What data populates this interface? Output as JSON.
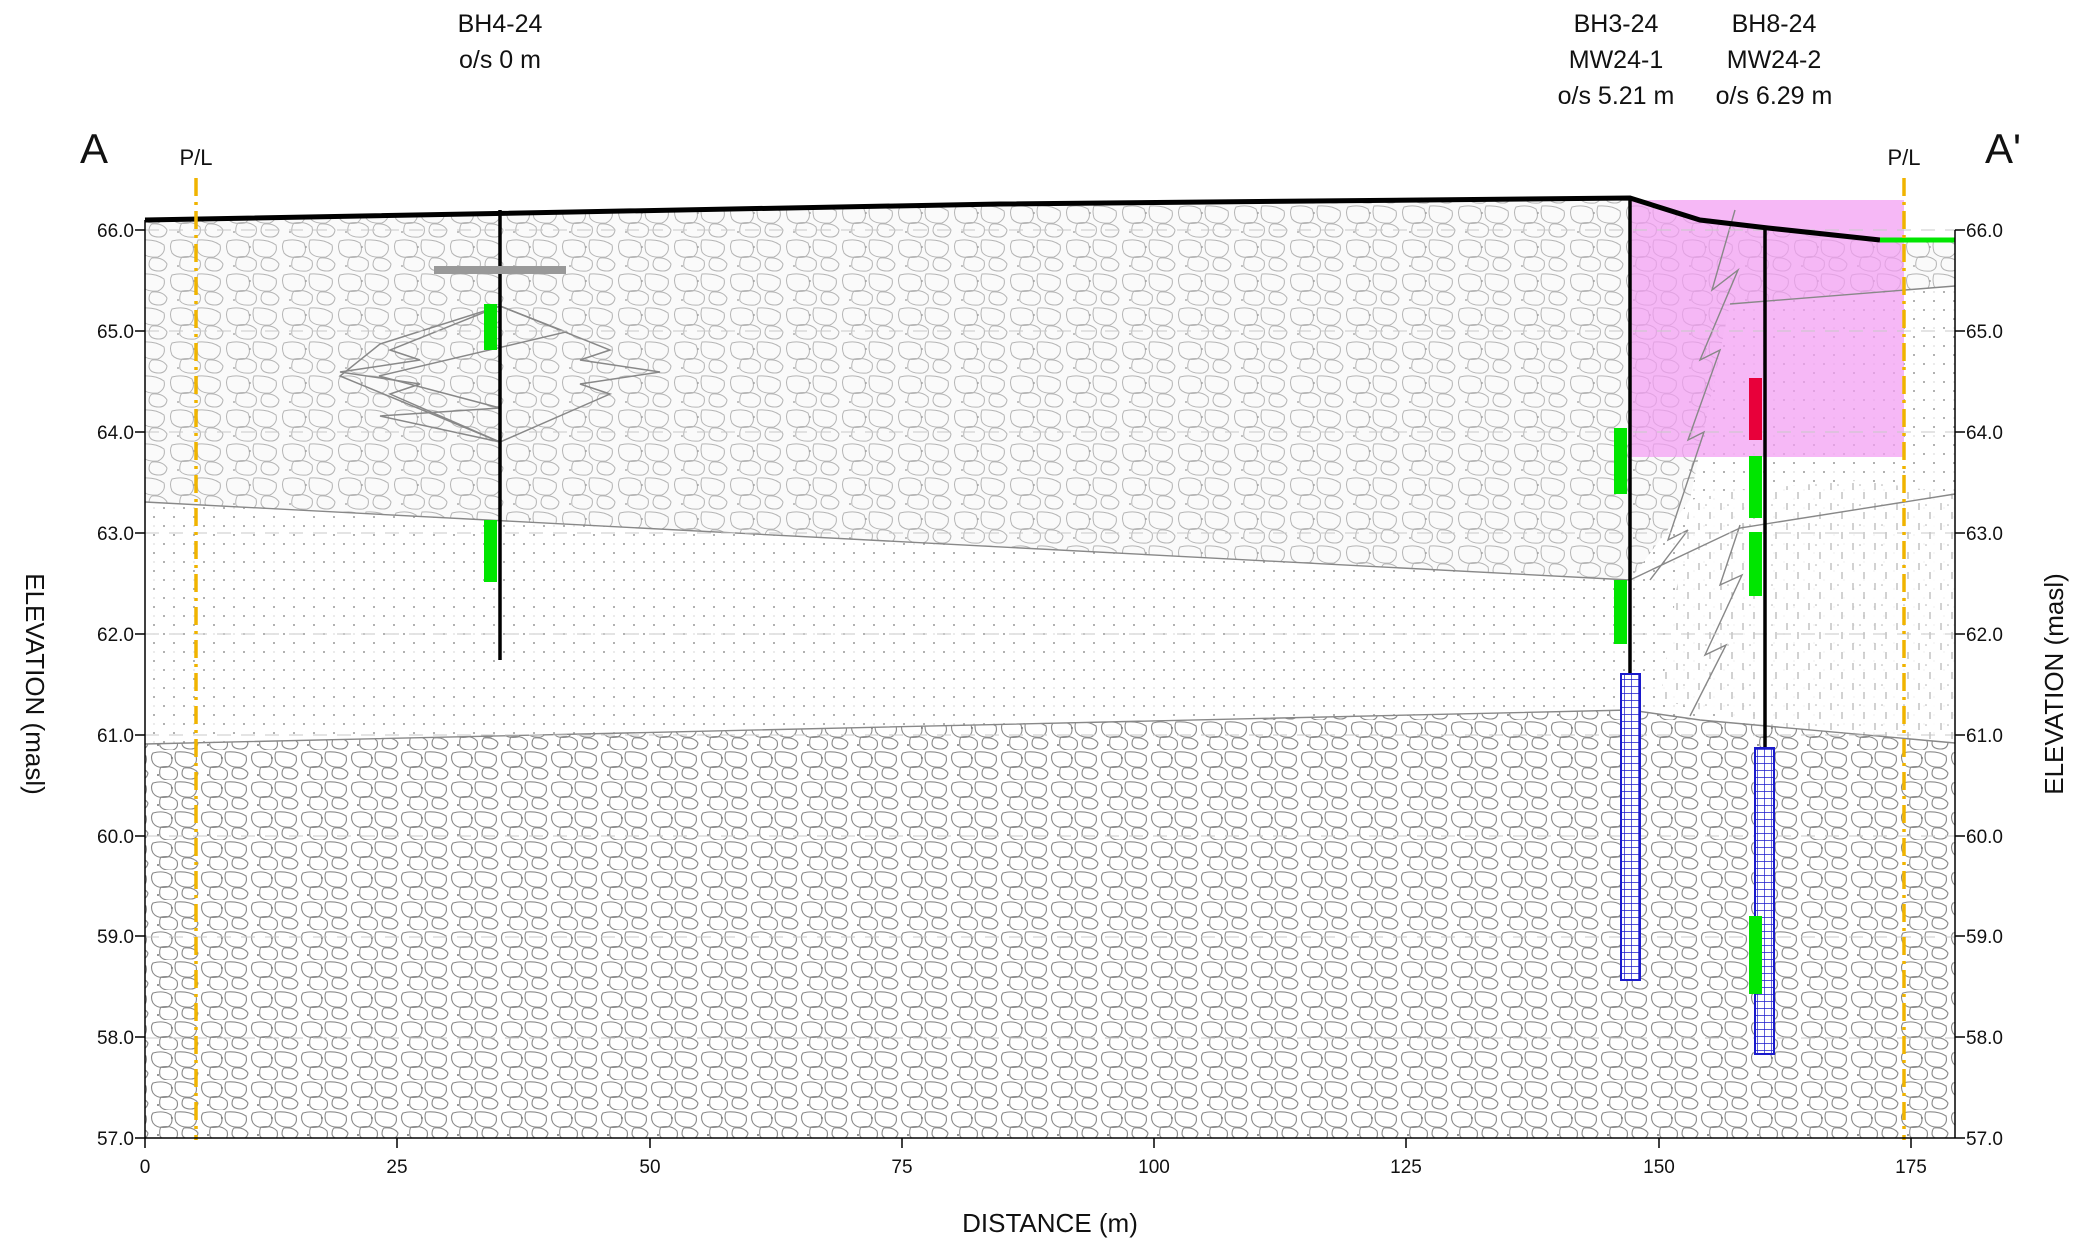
{
  "section": {
    "start_label": "A",
    "end_label": "A'",
    "x_axis_label": "DISTANCE (m)",
    "y_axis_label_left": "ELEVATION (masl)",
    "y_axis_label_right": "ELEVATION (masl)",
    "x_ticks": [
      "0",
      "25",
      "50",
      "75",
      "100",
      "125",
      "150",
      "175"
    ],
    "y_ticks": [
      "57.0",
      "58.0",
      "59.0",
      "60.0",
      "61.0",
      "62.0",
      "63.0",
      "64.0",
      "65.0",
      "66.0"
    ],
    "property_line_label": "P/L",
    "property_lines": [
      {
        "label": "P/L",
        "distance_m": 5
      },
      {
        "label": "P/L",
        "distance_m": 174.5
      }
    ]
  },
  "boreholes": [
    {
      "id": "BH4-24",
      "well": "",
      "offset": "o/s 0 m",
      "distance_m": 35,
      "top_elev": 66.2,
      "bottom_elev": 61.75
    },
    {
      "id": "BH3-24",
      "well": "MW24-1",
      "offset": "o/s 5.21 m",
      "distance_m": 147,
      "top_elev": 66.3,
      "bottom_elev": 58.6
    },
    {
      "id": "BH8-24",
      "well": "MW24-2",
      "offset": "o/s 6.29 m",
      "distance_m": 160,
      "top_elev": 66.05,
      "bottom_elev": 57.85
    }
  ],
  "colors": {
    "ground_surface": "#000000",
    "property_line": "#f0b400",
    "sample_green": "#00e600",
    "sample_red": "#e8003a",
    "impacted_zone": "#f29cf2",
    "screen": "#1a1acc",
    "contact": "#888888"
  }
}
